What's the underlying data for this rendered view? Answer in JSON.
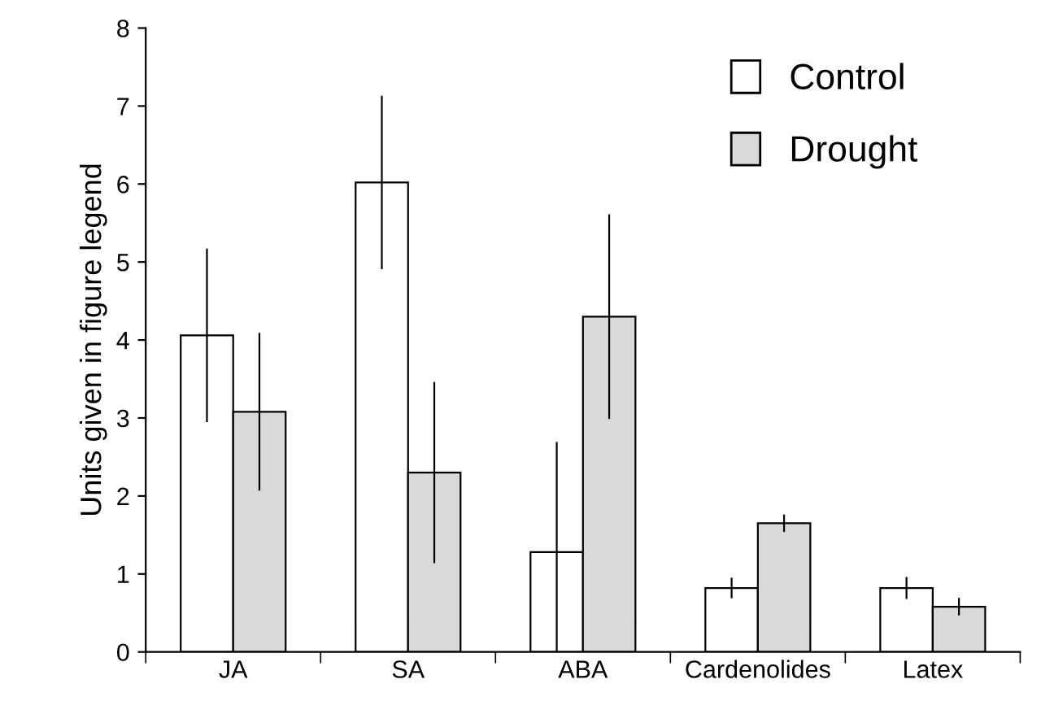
{
  "chart_data": {
    "type": "bar",
    "ylabel": "Units given in figure legend",
    "categories": [
      "JA",
      "SA",
      "ABA",
      "Cardenolides",
      "Latex"
    ],
    "series": [
      {
        "name": "Control",
        "color": "#ffffff",
        "values": [
          4.06,
          6.02,
          1.28,
          0.82,
          0.82
        ],
        "errors": [
          1.1,
          1.1,
          [
            0,
            2.68
          ],
          0.12,
          0.13
        ]
      },
      {
        "name": "Drought",
        "color": "#d9d9d9",
        "values": [
          3.08,
          2.3,
          4.3,
          1.65,
          0.58
        ],
        "errors": [
          1.0,
          1.15,
          1.3,
          0.1,
          0.1
        ]
      }
    ],
    "ylim": [
      0,
      8
    ],
    "yticks": [
      0,
      1,
      2,
      3,
      4,
      5,
      6,
      7,
      8
    ],
    "grid": false,
    "legend": "top right"
  }
}
